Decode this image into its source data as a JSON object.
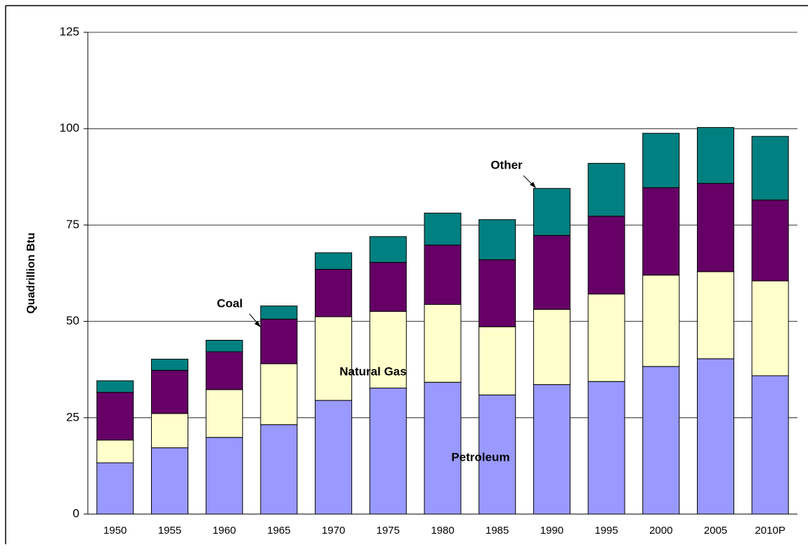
{
  "chart_data": {
    "type": "stacked_bar",
    "y_label": "Quadrillion Btu",
    "categories": [
      "1950",
      "1955",
      "1960",
      "1965",
      "1970",
      "1975",
      "1980",
      "1985",
      "1990",
      "1995",
      "2000",
      "2005",
      "2010P"
    ],
    "series": [
      {
        "name": "Petroleum",
        "color": "#9999ff",
        "values": [
          13.3,
          17.2,
          19.9,
          23.2,
          29.5,
          32.7,
          34.2,
          30.9,
          33.6,
          34.4,
          38.3,
          40.3,
          35.9
        ]
      },
      {
        "name": "Natural Gas",
        "color": "#ffffcc",
        "values": [
          5.9,
          8.9,
          12.4,
          15.8,
          21.7,
          19.9,
          20.2,
          17.7,
          19.5,
          22.7,
          23.7,
          22.6,
          24.6
        ]
      },
      {
        "name": "Coal",
        "color": "#660066",
        "values": [
          12.4,
          11.2,
          9.8,
          11.6,
          12.3,
          12.7,
          15.4,
          17.4,
          19.2,
          20.2,
          22.7,
          22.9,
          21.0
        ]
      },
      {
        "name": "Other",
        "color": "#008080",
        "values": [
          3.0,
          2.9,
          3.0,
          3.4,
          4.3,
          6.7,
          8.3,
          10.4,
          12.2,
          13.7,
          14.1,
          14.5,
          16.5
        ]
      }
    ],
    "ylim": [
      0,
      125
    ],
    "yticks": [
      0,
      25,
      50,
      75,
      100,
      125
    ],
    "grid": true
  }
}
